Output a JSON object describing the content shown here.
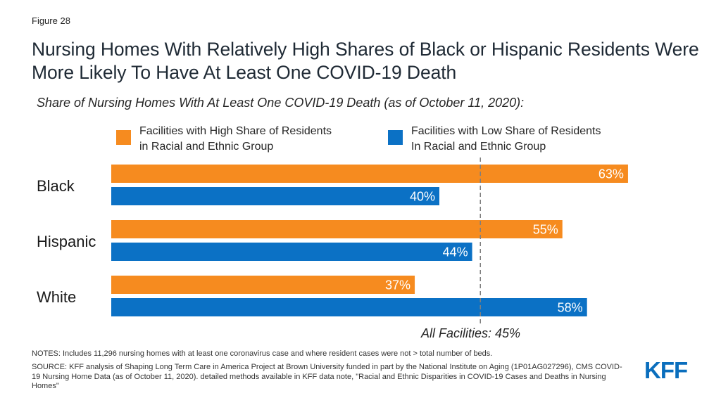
{
  "figure_label": "Figure 28",
  "title": "Nursing Homes With Relatively High Shares of Black or Hispanic Residents Were More Likely To Have At Least One COVID-19 Death",
  "subtitle": "Share of Nursing Homes With At Least One COVID-19 Death (as of October 11, 2020):",
  "legend": {
    "high": {
      "line1": "Facilities with High Share of Residents",
      "line2": "in Racial and Ethnic Group",
      "color": "#f68b1f"
    },
    "low": {
      "line1": "Facilities with Low Share of Residents",
      "line2": "In Racial and Ethnic Group",
      "color": "#0b71c5"
    }
  },
  "chart_data": {
    "type": "bar",
    "orientation": "horizontal",
    "categories": [
      "Black",
      "Hispanic",
      "White"
    ],
    "series": [
      {
        "name": "Facilities with High Share of Residents in Racial and Ethnic Group",
        "values": [
          63,
          55,
          37
        ],
        "labels": [
          "63%",
          "55%",
          "37%"
        ],
        "color": "#f68b1f"
      },
      {
        "name": "Facilities with Low Share of Residents In Racial and Ethnic Group",
        "values": [
          40,
          44,
          58
        ],
        "labels": [
          "40%",
          "44%",
          "58%"
        ],
        "color": "#0b71c5"
      }
    ],
    "xlim": [
      0,
      100
    ],
    "reference_line": {
      "value": 45,
      "label": "All Facilities: 45%"
    },
    "legend_position": "top",
    "grid": false
  },
  "notes": "NOTES: Includes 11,296 nursing homes with at least one coronavirus case and where resident cases were not > total number of beds.",
  "source": "SOURCE: KFF analysis of Shaping Long Term Care in America Project at Brown University funded in part by the National Institute on Aging (1P01AG027296), CMS COVID-19 Nursing Home Data (as of October 11, 2020). detailed methods available in KFF data note, \"Racial and Ethnic Disparities in COVID-19 Cases and Deaths in Nursing Homes\"",
  "logo_text": "KFF"
}
